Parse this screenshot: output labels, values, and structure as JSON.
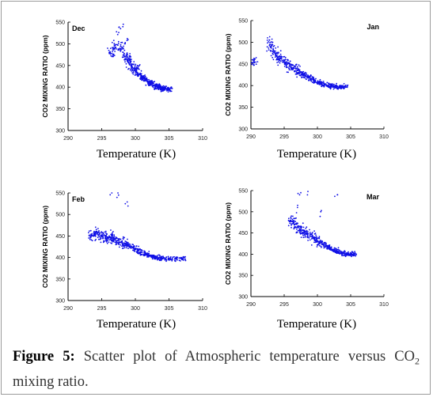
{
  "figure": {
    "label": "Figure 5:",
    "caption_part1": "Scatter plot of Atmospheric temperature versus CO",
    "caption_sub": "2",
    "caption_part2": " mixing ratio."
  },
  "colors": {
    "points": "#1010e6",
    "axis": "#000000",
    "frame": "#9a9a9a"
  },
  "chart_data": [
    {
      "type": "scatter",
      "panel_label": "Dec",
      "xlabel": "Temperature (K)",
      "ylabel": "CO2 MIXING RATIO (ppm)",
      "xlim": [
        290,
        310
      ],
      "ylim": [
        300,
        550
      ],
      "xticks": [
        290,
        295,
        300,
        305,
        310
      ],
      "yticks": [
        300,
        350,
        400,
        450,
        500,
        550
      ],
      "legend": "none",
      "grid": false,
      "series": [
        {
          "x": [
            296.5,
            297.0,
            297.5,
            298.0,
            298.5,
            299.0,
            299.5,
            300.0,
            300.5,
            301.0,
            301.5,
            302.0,
            302.5,
            303.0,
            303.5,
            304.0,
            304.5,
            305.0,
            297.2,
            298.2,
            298.8,
            297.8,
            299.2,
            298.4,
            300.2,
            301.2,
            302.2,
            303.2,
            304.2
          ],
          "y": [
            478,
            492,
            505,
            488,
            470,
            458,
            447,
            438,
            430,
            423,
            417,
            411,
            406,
            402,
            399,
            397,
            396,
            395,
            528,
            545,
            512,
            535,
            465,
            500,
            442,
            421,
            410,
            401,
            397
          ]
        }
      ],
      "note": "dense cloud; representative sample of points"
    },
    {
      "type": "scatter",
      "panel_label": "Jan",
      "xlabel": "Temperature (K)",
      "ylabel": "CO2 MIXING RATIO (ppm)",
      "xlim": [
        290,
        310
      ],
      "ylim": [
        300,
        550
      ],
      "xticks": [
        290,
        295,
        300,
        305,
        310
      ],
      "yticks": [
        300,
        350,
        400,
        450,
        500,
        550
      ],
      "legend": "none",
      "grid": false,
      "series": [
        {
          "x": [
            290.5,
            292.5,
            293.0,
            293.5,
            294.0,
            294.5,
            295.0,
            295.5,
            296.0,
            296.5,
            297.0,
            297.5,
            298.0,
            298.5,
            299.0,
            299.5,
            300.0,
            300.5,
            301.0,
            301.5,
            302.0,
            302.5,
            303.0,
            303.5,
            304.0,
            292.8,
            293.2
          ],
          "y": [
            455,
            510,
            490,
            478,
            468,
            462,
            456,
            450,
            445,
            440,
            435,
            430,
            425,
            420,
            416,
            412,
            408,
            405,
            402,
            400,
            399,
            398,
            397,
            396,
            398,
            505,
            500
          ]
        }
      ],
      "note": "dense cloud; representative sample of points"
    },
    {
      "type": "scatter",
      "panel_label": "Feb",
      "xlabel": "Temperature (K)",
      "ylabel": "CO2 MIXING RATIO (ppm)",
      "xlim": [
        290,
        310
      ],
      "ylim": [
        300,
        550
      ],
      "xticks": [
        290,
        295,
        300,
        305,
        310
      ],
      "yticks": [
        300,
        350,
        400,
        450,
        500,
        550
      ],
      "legend": "none",
      "grid": false,
      "series": [
        {
          "x": [
            293.5,
            294.0,
            294.5,
            295.0,
            295.5,
            296.0,
            296.5,
            297.0,
            297.5,
            298.0,
            298.5,
            299.0,
            299.5,
            300.0,
            300.5,
            301.0,
            301.5,
            302.0,
            302.5,
            303.0,
            303.5,
            304.0,
            305.0,
            306.0,
            307.0,
            296.5,
            297.5,
            298.5
          ],
          "y": [
            450,
            455,
            452,
            448,
            445,
            446,
            448,
            444,
            440,
            436,
            432,
            428,
            424,
            420,
            416,
            412,
            408,
            405,
            402,
            400,
            399,
            398,
            397,
            397,
            397,
            550,
            545,
            525
          ]
        }
      ],
      "note": "dense cloud; representative sample of points"
    },
    {
      "type": "scatter",
      "panel_label": "Mar",
      "xlabel": "Temperature (K)",
      "ylabel": "CO2 MIXING RATIO (ppm)",
      "xlim": [
        290,
        310
      ],
      "ylim": [
        300,
        550
      ],
      "xticks": [
        290,
        295,
        300,
        305,
        310
      ],
      "yticks": [
        300,
        350,
        400,
        450,
        500,
        550
      ],
      "legend": "none",
      "grid": false,
      "series": [
        {
          "x": [
            296.0,
            296.5,
            297.0,
            297.5,
            298.0,
            298.5,
            299.0,
            299.5,
            300.0,
            300.5,
            301.0,
            301.5,
            302.0,
            302.5,
            303.0,
            303.5,
            304.0,
            304.5,
            305.0,
            305.5,
            297.5,
            298.5,
            300.5,
            303.0,
            297.0
          ],
          "y": [
            480,
            470,
            465,
            458,
            452,
            447,
            442,
            437,
            432,
            427,
            422,
            418,
            414,
            410,
            406,
            403,
            401,
            400,
            400,
            400,
            545,
            540,
            500,
            540,
            510
          ]
        }
      ],
      "note": "dense cloud; representative sample of points"
    }
  ]
}
